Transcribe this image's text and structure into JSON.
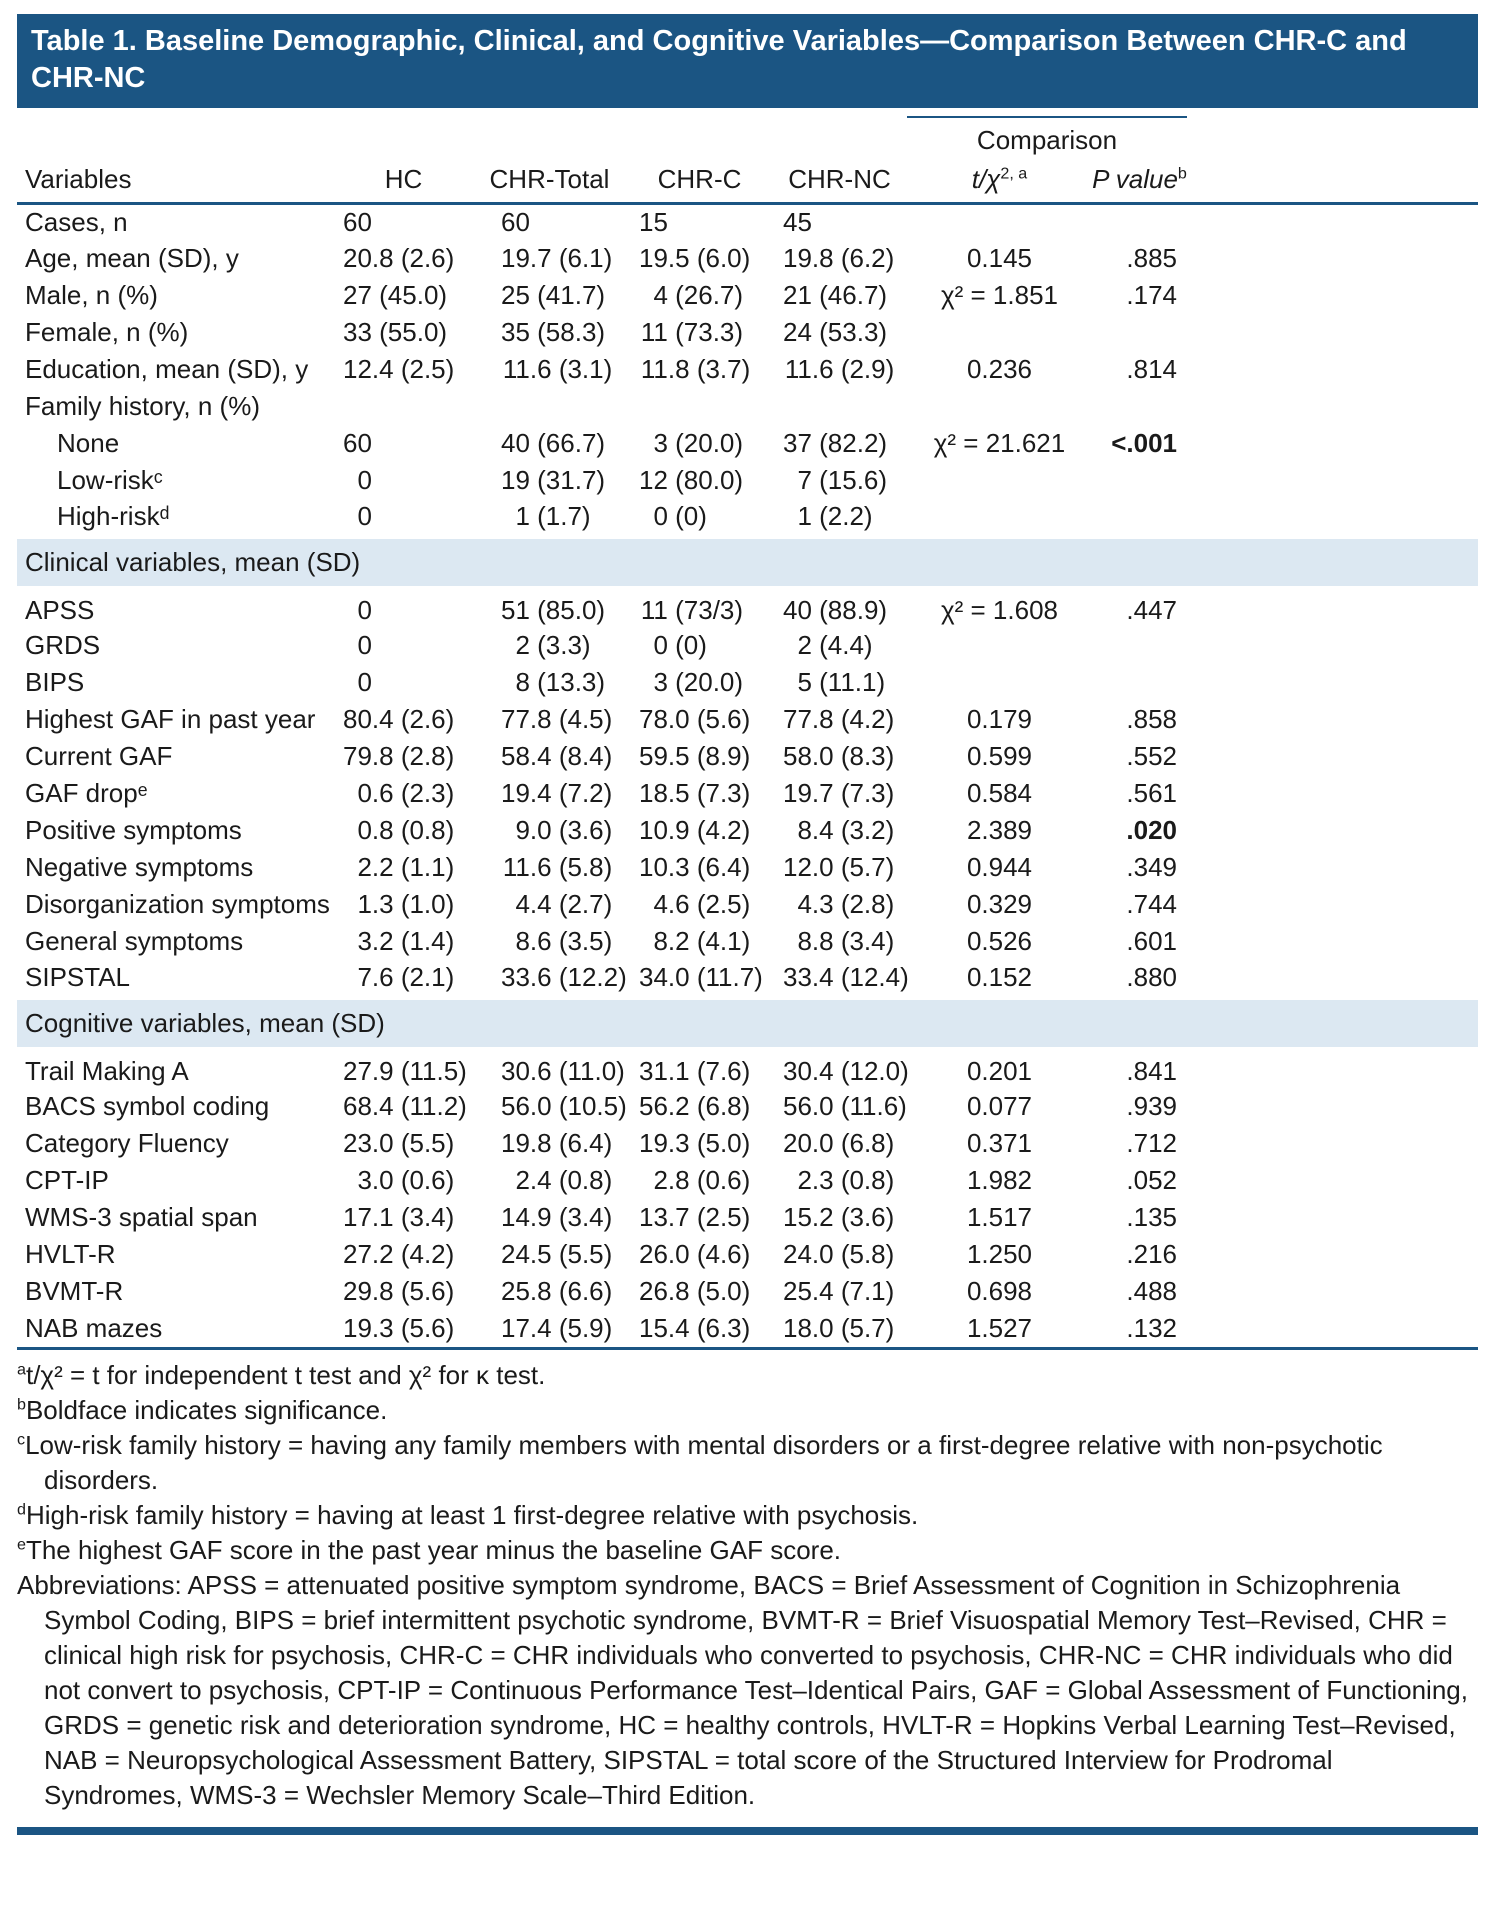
{
  "title": "Table 1. Baseline Demographic, Clinical, and Cognitive Variables—Comparison Between CHR-C and CHR-NC",
  "table": {
    "comparison_label": "Comparison",
    "columns": {
      "variables": "Variables",
      "hc": "HC",
      "chr_total": "CHR-Total",
      "chr_c": "CHR-C",
      "chr_nc": "CHR-NC",
      "stat": {
        "base": "t/χ",
        "sup": "2, a"
      },
      "p": {
        "base": "P value",
        "sup": "b"
      }
    },
    "rows": [
      {
        "type": "data",
        "label": "Cases, n",
        "values": [
          "60",
          "60",
          "15",
          "45",
          "",
          ""
        ]
      },
      {
        "type": "data",
        "label": "Age, mean (SD), y",
        "values": [
          "20.8 (2.6)",
          "19.7 (6.1)",
          "19.5 (6.0)",
          "19.8 (6.2)",
          "0.145",
          ".885"
        ]
      },
      {
        "type": "data",
        "label": "Male, n (%)",
        "values": [
          "27 (45.0)",
          "25 (41.7)",
          "4 (26.7)",
          "21 (46.7)",
          "χ² = 1.851",
          ".174"
        ]
      },
      {
        "type": "data",
        "label": "Female, n (%)",
        "values": [
          "33 (55.0)",
          "35 (58.3)",
          "11 (73.3)",
          "24 (53.3)",
          "",
          ""
        ]
      },
      {
        "type": "data",
        "label": "Education, mean (SD), y",
        "values": [
          "12.4 (2.5)",
          "11.6 (3.1)",
          "11.8 (3.7)",
          "11.6 (2.9)",
          "0.236",
          ".814"
        ]
      },
      {
        "type": "data",
        "label": "Family history, n (%)",
        "values": [
          "",
          "",
          "",
          "",
          "",
          ""
        ]
      },
      {
        "type": "data",
        "indent": true,
        "label": "None",
        "values": [
          "60",
          "40 (66.7)",
          "3 (20.0)",
          "37 (82.2)",
          "χ² = 21.621",
          "<.001"
        ],
        "bold_p": true
      },
      {
        "type": "data",
        "indent": true,
        "label": "Low-riskᶜ",
        "values": [
          "0",
          "19 (31.7)",
          "12 (80.0)",
          "7 (15.6)",
          "",
          ""
        ]
      },
      {
        "type": "data",
        "indent": true,
        "label": "High-riskᵈ",
        "values": [
          "0",
          "1 (1.7)",
          "0 (0)",
          "1 (2.2)",
          "",
          ""
        ]
      },
      {
        "type": "section",
        "label": "Clinical variables, mean (SD)"
      },
      {
        "type": "data",
        "label": "APSS",
        "values": [
          "0",
          "51 (85.0)",
          "11 (73/3)",
          "40 (88.9)",
          "χ² = 1.608",
          ".447"
        ]
      },
      {
        "type": "data",
        "label": "GRDS",
        "values": [
          "0",
          "2 (3.3)",
          "0 (0)",
          "2 (4.4)",
          "",
          ""
        ]
      },
      {
        "type": "data",
        "label": "BIPS",
        "values": [
          "0",
          "8 (13.3)",
          "3 (20.0)",
          "5 (11.1)",
          "",
          ""
        ]
      },
      {
        "type": "data",
        "label": "Highest GAF in past year",
        "values": [
          "80.4 (2.6)",
          "77.8 (4.5)",
          "78.0 (5.6)",
          "77.8 (4.2)",
          "0.179",
          ".858"
        ]
      },
      {
        "type": "data",
        "label": "Current GAF",
        "values": [
          "79.8 (2.8)",
          "58.4 (8.4)",
          "59.5 (8.9)",
          "58.0 (8.3)",
          "0.599",
          ".552"
        ]
      },
      {
        "type": "data",
        "label": "GAF dropᵉ",
        "values": [
          "0.6 (2.3)",
          "19.4 (7.2)",
          "18.5 (7.3)",
          "19.7 (7.3)",
          "0.584",
          ".561"
        ]
      },
      {
        "type": "data",
        "label": "Positive symptoms",
        "values": [
          "0.8 (0.8)",
          "9.0 (3.6)",
          "10.9 (4.2)",
          "8.4 (3.2)",
          "2.389",
          ".020"
        ],
        "bold_p": true
      },
      {
        "type": "data",
        "label": "Negative symptoms",
        "values": [
          "2.2 (1.1)",
          "11.6 (5.8)",
          "10.3 (6.4)",
          "12.0 (5.7)",
          "0.944",
          ".349"
        ]
      },
      {
        "type": "data",
        "label": "Disorganization symptoms",
        "values": [
          "1.3 (1.0)",
          "4.4 (2.7)",
          "4.6 (2.5)",
          "4.3 (2.8)",
          "0.329",
          ".744"
        ]
      },
      {
        "type": "data",
        "label": "General symptoms",
        "values": [
          "3.2 (1.4)",
          "8.6 (3.5)",
          "8.2 (4.1)",
          "8.8 (3.4)",
          "0.526",
          ".601"
        ]
      },
      {
        "type": "data",
        "label": "SIPSTAL",
        "values": [
          "7.6 (2.1)",
          "33.6 (12.2)",
          "34.0 (11.7)",
          "33.4 (12.4)",
          "0.152",
          ".880"
        ]
      },
      {
        "type": "section",
        "label": "Cognitive variables, mean (SD)"
      },
      {
        "type": "data",
        "label": "Trail Making A",
        "values": [
          "27.9 (11.5)",
          "30.6 (11.0)",
          "31.1 (7.6)",
          "30.4 (12.0)",
          "0.201",
          ".841"
        ]
      },
      {
        "type": "data",
        "label": "BACS symbol coding",
        "values": [
          "68.4 (11.2)",
          "56.0 (10.5)",
          "56.2 (6.8)",
          "56.0 (11.6)",
          "0.077",
          ".939"
        ]
      },
      {
        "type": "data",
        "label": "Category Fluency",
        "values": [
          "23.0 (5.5)",
          "19.8 (6.4)",
          "19.3 (5.0)",
          "20.0 (6.8)",
          "0.371",
          ".712"
        ]
      },
      {
        "type": "data",
        "label": "CPT-IP",
        "values": [
          "3.0 (0.6)",
          "2.4 (0.8)",
          "2.8 (0.6)",
          "2.3 (0.8)",
          "1.982",
          ".052"
        ]
      },
      {
        "type": "data",
        "label": "WMS-3 spatial span",
        "values": [
          "17.1 (3.4)",
          "14.9 (3.4)",
          "13.7 (2.5)",
          "15.2 (3.6)",
          "1.517",
          ".135"
        ]
      },
      {
        "type": "data",
        "label": "HVLT-R",
        "values": [
          "27.2 (4.2)",
          "24.5 (5.5)",
          "26.0 (4.6)",
          "24.0 (5.8)",
          "1.250",
          ".216"
        ]
      },
      {
        "type": "data",
        "label": "BVMT-R",
        "values": [
          "29.8 (5.6)",
          "25.8 (6.6)",
          "26.8 (5.0)",
          "25.4 (7.1)",
          "0.698",
          ".488"
        ]
      },
      {
        "type": "data",
        "label": "NAB mazes",
        "values": [
          "19.3 (5.6)",
          "17.4 (5.9)",
          "15.4 (6.3)",
          "18.0 (5.7)",
          "1.527",
          ".132"
        ]
      }
    ]
  },
  "footnotes": [
    {
      "sup": "a",
      "text": "t/χ² = t for independent t test and χ² for κ test."
    },
    {
      "sup": "b",
      "text": "Boldface indicates significance."
    },
    {
      "sup": "c",
      "text": "Low-risk family history = having any family members with mental disorders or a first-degree relative with non-psychotic disorders."
    },
    {
      "sup": "d",
      "text": "High-risk family history = having at least 1 first-degree relative with psychosis."
    },
    {
      "sup": "e",
      "text": "The highest GAF score in the past year minus the baseline GAF score."
    },
    {
      "sup": "",
      "text": "Abbreviations: APSS = attenuated positive symptom syndrome, BACS = Brief Assessment of Cognition in Schizophrenia Symbol Coding, BIPS = brief intermittent psychotic syndrome, BVMT-R = Brief Visuospatial Memory Test–Revised, CHR = clinical high risk for psychosis, CHR-C = CHR individuals who converted to psychosis, CHR-NC = CHR individuals who did not convert to psychosis, CPT-IP = Continuous Performance Test–Identical Pairs, GAF = Global Assessment of Functioning, GRDS = genetic risk and deterioration syndrome, HC = healthy controls, HVLT-R = Hopkins Verbal Learning Test–Revised, NAB = Neuropsychological Assessment Battery, SIPSTAL = total score of the Structured Interview for Prodromal Syndromes, WMS-3 = Wechsler Memory Scale–Third Edition."
    }
  ],
  "colors": {
    "banner": "#1B5583",
    "section_band": "#DCE8F2",
    "text": "#1A1A1A"
  }
}
